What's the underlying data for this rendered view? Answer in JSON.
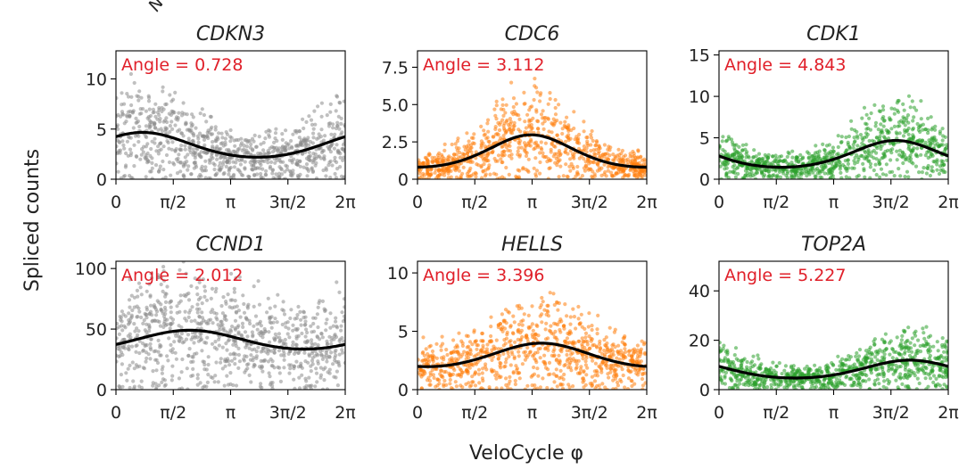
{
  "figure": {
    "ylabel": "Spliced counts",
    "xlabel": "VeloCycle φ",
    "x_tick_labels": [
      "0",
      "π/2",
      "π",
      "3π/2",
      "2π"
    ],
    "angle_prefix": "Angle = ",
    "partial_top_label": "N"
  },
  "chart_data": [
    {
      "type": "scatter",
      "title": "CDKN3",
      "color": "#8c8c8c",
      "angle": "0.728",
      "xlim": [
        0,
        6.2832
      ],
      "ylim": [
        0,
        12.8
      ],
      "yticks": [
        0,
        5,
        10
      ],
      "ytick_labels": [
        "0",
        "5",
        "10"
      ],
      "fit": {
        "mean": 3.2,
        "amp": 1.75,
        "phase": 0.728
      }
    },
    {
      "type": "scatter",
      "title": "CDC6",
      "color": "#ff7f0e",
      "angle": "3.112",
      "xlim": [
        0,
        6.2832
      ],
      "ylim": [
        0,
        8.6
      ],
      "yticks": [
        0,
        2.5,
        5.0,
        7.5
      ],
      "ytick_labels": [
        "0",
        "2.5",
        "5.0",
        "7.5"
      ],
      "fit": {
        "mean": 1.55,
        "amp": 1.9,
        "phase": 3.112
      }
    },
    {
      "type": "scatter",
      "title": "CDK1",
      "color": "#2ca02c",
      "angle": "4.843",
      "xlim": [
        0,
        6.2832
      ],
      "ylim": [
        0,
        15.5
      ],
      "yticks": [
        0,
        5,
        10,
        15
      ],
      "ytick_labels": [
        "0",
        "5",
        "10",
        "15"
      ],
      "fit": {
        "mean": 2.6,
        "amp": 2.7,
        "phase": 4.843
      }
    },
    {
      "type": "scatter",
      "title": "CCND1",
      "color": "#8c8c8c",
      "angle": "2.012",
      "xlim": [
        0,
        6.2832
      ],
      "ylim": [
        0,
        106
      ],
      "yticks": [
        0,
        50,
        100
      ],
      "ytick_labels": [
        "0",
        "50",
        "100"
      ],
      "fit": {
        "mean": 40.5,
        "amp": 9.5,
        "phase": 2.012
      }
    },
    {
      "type": "scatter",
      "title": "HELLS",
      "color": "#ff7f0e",
      "angle": "3.396",
      "xlim": [
        0,
        6.2832
      ],
      "ylim": [
        0,
        11
      ],
      "yticks": [
        0,
        5,
        10
      ],
      "ytick_labels": [
        "0",
        "5",
        "10"
      ],
      "fit": {
        "mean": 2.8,
        "amp": 1.4,
        "phase": 3.396
      }
    },
    {
      "type": "scatter",
      "title": "TOP2A",
      "color": "#2ca02c",
      "angle": "5.227",
      "xlim": [
        0,
        6.2832
      ],
      "ylim": [
        0,
        52
      ],
      "yticks": [
        0,
        20,
        40
      ],
      "ytick_labels": [
        "0",
        "20",
        "40"
      ],
      "fit": {
        "mean": 7.5,
        "amp": 5.5,
        "phase": 5.227
      }
    }
  ]
}
